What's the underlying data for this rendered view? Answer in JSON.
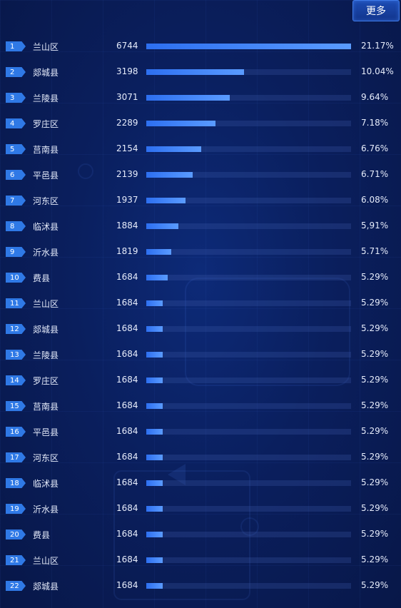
{
  "header": {
    "more_label": "更多"
  },
  "max_value": 6744,
  "rows": [
    {
      "rank": "1",
      "name": "兰山区",
      "value": 6744,
      "pct": "21.17%"
    },
    {
      "rank": "2",
      "name": "郯城县",
      "value": 3198,
      "pct": "10.04%"
    },
    {
      "rank": "3",
      "name": "兰陵县",
      "value": 3071,
      "pct": "9.64%"
    },
    {
      "rank": "4",
      "name": "罗庄区",
      "value": 2289,
      "pct": "7.18%"
    },
    {
      "rank": "5",
      "name": "莒南县",
      "value": 2154,
      "pct": "6.76%"
    },
    {
      "rank": "6",
      "name": "平邑县",
      "value": 2139,
      "pct": "6.71%"
    },
    {
      "rank": "7",
      "name": "河东区",
      "value": 1937,
      "pct": "6.08%"
    },
    {
      "rank": "8",
      "name": "临沭县",
      "value": 1884,
      "pct": "5,91%"
    },
    {
      "rank": "9",
      "name": "沂水县",
      "value": 1819,
      "pct": "5.71%"
    },
    {
      "rank": "10",
      "name": "费县",
      "value": 1684,
      "pct": "5.29%"
    },
    {
      "rank": "11",
      "name": "兰山区",
      "value": 1684,
      "pct": "5.29%"
    },
    {
      "rank": "12",
      "name": "郯城县",
      "value": 1684,
      "pct": "5.29%"
    },
    {
      "rank": "13",
      "name": "兰陵县",
      "value": 1684,
      "pct": "5.29%"
    },
    {
      "rank": "14",
      "name": "罗庄区",
      "value": 1684,
      "pct": "5.29%"
    },
    {
      "rank": "15",
      "name": "莒南县",
      "value": 1684,
      "pct": "5.29%"
    },
    {
      "rank": "16",
      "name": "平邑县",
      "value": 1684,
      "pct": "5.29%"
    },
    {
      "rank": "17",
      "name": "河东区",
      "value": 1684,
      "pct": "5.29%"
    },
    {
      "rank": "18",
      "name": "临沭县",
      "value": 1684,
      "pct": "5.29%"
    },
    {
      "rank": "19",
      "name": "沂水县",
      "value": 1684,
      "pct": "5.29%"
    },
    {
      "rank": "20",
      "name": "费县",
      "value": 1684,
      "pct": "5.29%"
    },
    {
      "rank": "21",
      "name": "兰山区",
      "value": 1684,
      "pct": "5.29%"
    },
    {
      "rank": "22",
      "name": "郯城县",
      "value": 1684,
      "pct": "5.29%"
    }
  ],
  "bar_fill_fraction": [
    1.0,
    0.477,
    0.406,
    0.338,
    0.268,
    0.226,
    0.192,
    0.157,
    0.122,
    0.105,
    0.08,
    0.08,
    0.08,
    0.08,
    0.08,
    0.08,
    0.08,
    0.08,
    0.08,
    0.08,
    0.08,
    0.08
  ],
  "colors": {
    "rank_badge": "#2f79e6",
    "bar_start": "#2d6ff0",
    "bar_end": "#5a9bff",
    "background": "#0a1f5e"
  }
}
